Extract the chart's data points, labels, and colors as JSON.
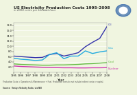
{
  "title": "US Electricity Production Costs 1995-2008",
  "subtitle": "in 2008 cents per kilowatt-hour",
  "xlabel": "Year",
  "bg_color": "#f0f5e0",
  "fig_bg_color": "#f0f5e0",
  "years": [
    1995,
    1996,
    1997,
    1998,
    1999,
    2000,
    2001,
    2002,
    2003,
    2004,
    2005,
    2006,
    2007,
    2008
  ],
  "oil": [
    6.2,
    6.0,
    5.8,
    5.6,
    5.7,
    6.8,
    7.2,
    6.2,
    6.8,
    7.5,
    9.8,
    11.5,
    13.0,
    17.5
  ],
  "gas": [
    5.4,
    5.0,
    4.8,
    4.5,
    4.7,
    6.8,
    7.5,
    5.2,
    6.2,
    6.2,
    8.2,
    7.2,
    7.8,
    8.2
  ],
  "coal": [
    3.2,
    3.0,
    2.9,
    2.8,
    2.7,
    2.7,
    2.8,
    2.8,
    2.9,
    3.0,
    3.2,
    3.3,
    3.5,
    3.7
  ],
  "nuclear": [
    2.4,
    2.2,
    2.1,
    2.0,
    1.9,
    1.8,
    1.75,
    1.7,
    1.7,
    1.65,
    1.65,
    1.7,
    1.7,
    1.75
  ],
  "oil_color": "#3333aa",
  "gas_color": "#22aadd",
  "coal_color": "#66bb44",
  "nuclear_color": "#cc33aa",
  "ylim": [
    0,
    19
  ],
  "yticks": [
    2.0,
    4.0,
    6.0,
    8.0,
    10.0,
    12.0,
    14.0,
    16.0,
    18.0
  ],
  "footnote": "Production Costs = Operations & Maintenance + Fuel. Production costs do not include indirect costs or capital.",
  "source": "Source:  Ventyx Velocity Suite, via NEI",
  "logo_color": "#3366aa"
}
